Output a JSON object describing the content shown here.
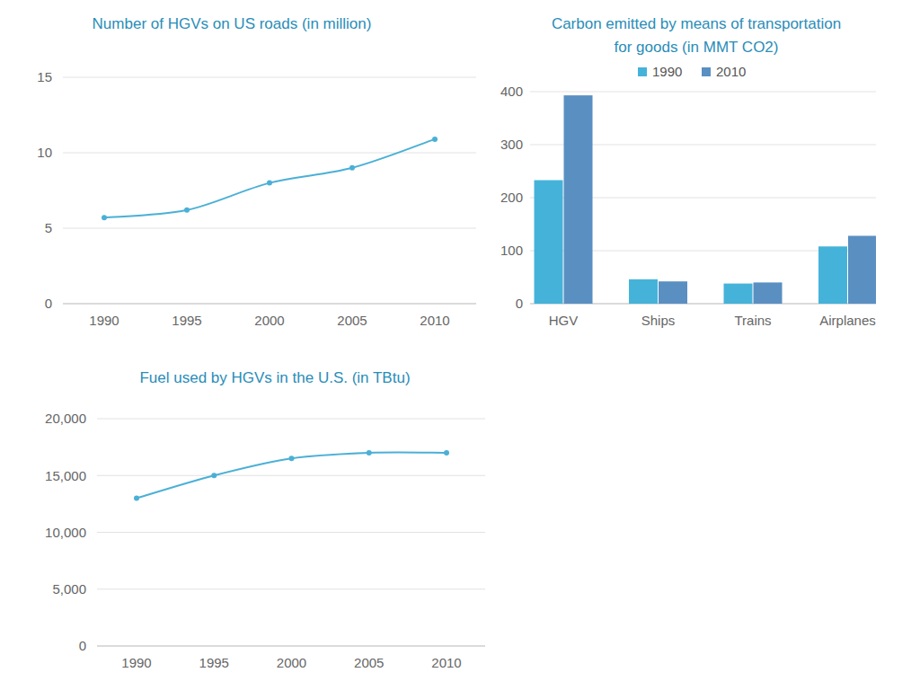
{
  "chart_data": [
    {
      "type": "line",
      "title": "Number of HGVs on US roads (in million)",
      "categories": [
        "1990",
        "1995",
        "2000",
        "2005",
        "2010"
      ],
      "values": [
        5.7,
        6.2,
        8.0,
        9.0,
        10.9
      ],
      "color": "#4bb0d6",
      "marker": "circle",
      "line_style": "solid",
      "ylim": [
        0,
        15
      ],
      "yticks": [
        0,
        5,
        10,
        15
      ],
      "grid": true
    },
    {
      "type": "bar",
      "title": "Carbon emitted by means of transportation for goods (in MMT CO2)",
      "categories": [
        "HGV",
        "Ships",
        "Trains",
        "Airplanes"
      ],
      "series": [
        {
          "name": "1990",
          "color": "#45b3d9",
          "values": [
            233,
            46,
            38,
            108
          ]
        },
        {
          "name": "2010",
          "color": "#5a8fc2",
          "values": [
            393,
            42,
            40,
            128
          ]
        }
      ],
      "ylim": [
        0,
        400
      ],
      "yticks": [
        0,
        100,
        200,
        300,
        400
      ],
      "grid": true,
      "legend": "top"
    },
    {
      "type": "line",
      "title": "Fuel used by HGVs in the U.S. (in TBtu)",
      "categories": [
        "1990",
        "1995",
        "2000",
        "2005",
        "2010"
      ],
      "values": [
        13000,
        15000,
        16500,
        17000,
        17000
      ],
      "color": "#4bb0d6",
      "marker": "circle",
      "line_style": "solid",
      "ylim": [
        0,
        20000
      ],
      "yticks": [
        0,
        {
          "value": 5000,
          "label": "5,000"
        },
        {
          "value": 10000,
          "label": "10,000"
        },
        {
          "value": 15000,
          "label": "15,000"
        },
        {
          "value": 20000,
          "label": "20,000"
        }
      ],
      "grid": true
    }
  ]
}
